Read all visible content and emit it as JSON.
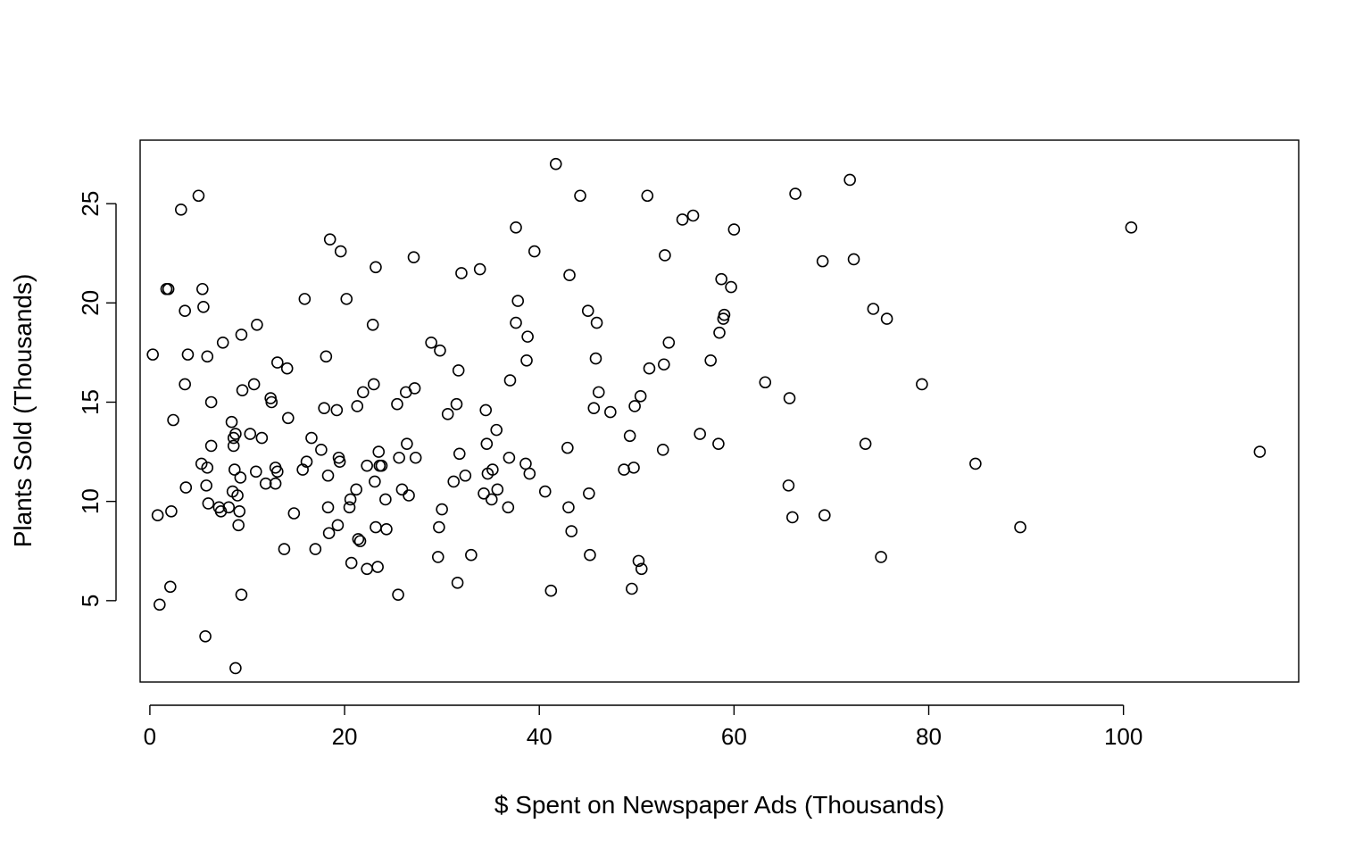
{
  "chart_data": {
    "type": "scatter",
    "title": "",
    "xlabel": "$ Spent on Newspaper Ads (Thousands)",
    "ylabel": "Plants Sold (Thousands)",
    "xlim": [
      -1,
      118
    ],
    "ylim": [
      0.9,
      28.2
    ],
    "xticks": [
      0,
      20,
      40,
      60,
      80,
      100
    ],
    "yticks": [
      5,
      10,
      15,
      20,
      25
    ],
    "grid": false,
    "legend": "none",
    "marker": "open-circle",
    "color": "#000000",
    "series": [
      {
        "points": [
          [
            0.3,
            17.4
          ],
          [
            0.8,
            9.3
          ],
          [
            1.0,
            4.8
          ],
          [
            1.7,
            20.7
          ],
          [
            1.9,
            20.7
          ],
          [
            2.1,
            5.7
          ],
          [
            2.2,
            9.5
          ],
          [
            2.4,
            14.1
          ],
          [
            3.2,
            24.7
          ],
          [
            3.6,
            19.6
          ],
          [
            3.6,
            15.9
          ],
          [
            3.7,
            10.7
          ],
          [
            3.9,
            17.4
          ],
          [
            5.0,
            25.4
          ],
          [
            5.3,
            11.9
          ],
          [
            5.4,
            20.7
          ],
          [
            5.5,
            19.8
          ],
          [
            5.7,
            3.2
          ],
          [
            5.8,
            10.8
          ],
          [
            5.9,
            11.7
          ],
          [
            5.9,
            17.3
          ],
          [
            6.0,
            9.9
          ],
          [
            6.3,
            15.0
          ],
          [
            6.3,
            12.8
          ],
          [
            7.1,
            9.7
          ],
          [
            7.3,
            9.5
          ],
          [
            7.5,
            18.0
          ],
          [
            8.1,
            9.7
          ],
          [
            8.4,
            14.0
          ],
          [
            8.5,
            10.5
          ],
          [
            8.6,
            12.8
          ],
          [
            8.6,
            13.2
          ],
          [
            8.7,
            11.6
          ],
          [
            8.8,
            13.4
          ],
          [
            8.8,
            1.6
          ],
          [
            9.0,
            10.3
          ],
          [
            9.1,
            8.8
          ],
          [
            9.2,
            9.5
          ],
          [
            9.3,
            11.2
          ],
          [
            9.4,
            18.4
          ],
          [
            9.4,
            5.3
          ],
          [
            9.5,
            15.6
          ],
          [
            10.3,
            13.4
          ],
          [
            10.7,
            15.9
          ],
          [
            10.9,
            11.5
          ],
          [
            11.0,
            18.9
          ],
          [
            11.5,
            13.2
          ],
          [
            11.9,
            10.9
          ],
          [
            12.4,
            15.2
          ],
          [
            12.5,
            15.0
          ],
          [
            12.9,
            11.7
          ],
          [
            12.9,
            10.9
          ],
          [
            13.1,
            11.5
          ],
          [
            13.1,
            17.0
          ],
          [
            13.8,
            7.6
          ],
          [
            14.1,
            16.7
          ],
          [
            14.2,
            14.2
          ],
          [
            14.8,
            9.4
          ],
          [
            15.7,
            11.6
          ],
          [
            15.9,
            20.2
          ],
          [
            16.1,
            12.0
          ],
          [
            16.6,
            13.2
          ],
          [
            17.0,
            7.6
          ],
          [
            17.6,
            12.6
          ],
          [
            17.9,
            14.7
          ],
          [
            18.1,
            17.3
          ],
          [
            18.3,
            11.3
          ],
          [
            18.3,
            9.7
          ],
          [
            18.4,
            8.4
          ],
          [
            18.5,
            23.2
          ],
          [
            19.2,
            14.6
          ],
          [
            19.3,
            8.8
          ],
          [
            19.4,
            12.2
          ],
          [
            19.5,
            12.0
          ],
          [
            19.6,
            22.6
          ],
          [
            20.2,
            20.2
          ],
          [
            20.5,
            9.7
          ],
          [
            20.6,
            10.1
          ],
          [
            20.7,
            6.9
          ],
          [
            21.2,
            10.6
          ],
          [
            21.3,
            14.8
          ],
          [
            21.4,
            8.1
          ],
          [
            21.6,
            8.0
          ],
          [
            21.9,
            15.5
          ],
          [
            22.3,
            11.8
          ],
          [
            22.3,
            6.6
          ],
          [
            22.9,
            18.9
          ],
          [
            23.0,
            15.9
          ],
          [
            23.1,
            11.0
          ],
          [
            23.2,
            21.8
          ],
          [
            23.2,
            8.7
          ],
          [
            23.4,
            6.7
          ],
          [
            23.5,
            12.5
          ],
          [
            23.6,
            11.8
          ],
          [
            23.8,
            11.8
          ],
          [
            24.2,
            10.1
          ],
          [
            24.3,
            8.6
          ],
          [
            25.4,
            14.9
          ],
          [
            25.5,
            5.3
          ],
          [
            25.6,
            12.2
          ],
          [
            25.9,
            10.6
          ],
          [
            26.3,
            15.5
          ],
          [
            26.4,
            12.9
          ],
          [
            26.6,
            10.3
          ],
          [
            27.1,
            22.3
          ],
          [
            27.2,
            15.7
          ],
          [
            27.3,
            12.2
          ],
          [
            28.9,
            18.0
          ],
          [
            29.6,
            7.2
          ],
          [
            29.7,
            8.7
          ],
          [
            29.8,
            17.6
          ],
          [
            30.0,
            9.6
          ],
          [
            30.6,
            14.4
          ],
          [
            31.2,
            11.0
          ],
          [
            31.5,
            14.9
          ],
          [
            31.6,
            5.9
          ],
          [
            31.7,
            16.6
          ],
          [
            31.8,
            12.4
          ],
          [
            32.0,
            21.5
          ],
          [
            32.4,
            11.3
          ],
          [
            33.0,
            7.3
          ],
          [
            33.9,
            21.7
          ],
          [
            34.3,
            10.4
          ],
          [
            34.5,
            14.6
          ],
          [
            34.6,
            12.9
          ],
          [
            34.7,
            11.4
          ],
          [
            35.1,
            10.1
          ],
          [
            35.2,
            11.6
          ],
          [
            35.6,
            13.6
          ],
          [
            35.7,
            10.6
          ],
          [
            36.8,
            9.7
          ],
          [
            36.9,
            12.2
          ],
          [
            37.0,
            16.1
          ],
          [
            37.6,
            23.8
          ],
          [
            37.6,
            19.0
          ],
          [
            37.8,
            20.1
          ],
          [
            38.6,
            11.9
          ],
          [
            38.7,
            17.1
          ],
          [
            38.8,
            18.3
          ],
          [
            39.0,
            11.4
          ],
          [
            39.5,
            22.6
          ],
          [
            40.6,
            10.5
          ],
          [
            41.2,
            5.5
          ],
          [
            41.7,
            27.0
          ],
          [
            42.9,
            12.7
          ],
          [
            43.0,
            9.7
          ],
          [
            43.1,
            21.4
          ],
          [
            43.3,
            8.5
          ],
          [
            44.2,
            25.4
          ],
          [
            45.0,
            19.6
          ],
          [
            45.1,
            10.4
          ],
          [
            45.2,
            7.3
          ],
          [
            45.6,
            14.7
          ],
          [
            45.8,
            17.2
          ],
          [
            45.9,
            19.0
          ],
          [
            46.1,
            15.5
          ],
          [
            47.3,
            14.5
          ],
          [
            48.7,
            11.6
          ],
          [
            49.3,
            13.3
          ],
          [
            49.5,
            5.6
          ],
          [
            49.7,
            11.7
          ],
          [
            49.8,
            14.8
          ],
          [
            50.2,
            7.0
          ],
          [
            50.4,
            15.3
          ],
          [
            50.5,
            6.6
          ],
          [
            51.1,
            25.4
          ],
          [
            51.3,
            16.7
          ],
          [
            52.7,
            12.6
          ],
          [
            52.8,
            16.9
          ],
          [
            52.9,
            22.4
          ],
          [
            53.3,
            18.0
          ],
          [
            54.7,
            24.2
          ],
          [
            55.8,
            24.4
          ],
          [
            56.5,
            13.4
          ],
          [
            57.6,
            17.1
          ],
          [
            58.4,
            12.9
          ],
          [
            58.5,
            18.5
          ],
          [
            58.7,
            21.2
          ],
          [
            58.9,
            19.2
          ],
          [
            59.0,
            19.4
          ],
          [
            59.7,
            20.8
          ],
          [
            60.0,
            23.7
          ],
          [
            63.2,
            16.0
          ],
          [
            65.6,
            10.8
          ],
          [
            65.7,
            15.2
          ],
          [
            66.0,
            9.2
          ],
          [
            66.3,
            25.5
          ],
          [
            69.1,
            22.1
          ],
          [
            69.3,
            9.3
          ],
          [
            71.9,
            26.2
          ],
          [
            72.3,
            22.2
          ],
          [
            73.5,
            12.9
          ],
          [
            74.3,
            19.7
          ],
          [
            75.1,
            7.2
          ],
          [
            75.7,
            19.2
          ],
          [
            79.3,
            15.9
          ],
          [
            84.8,
            11.9
          ],
          [
            89.4,
            8.7
          ],
          [
            100.8,
            23.8
          ],
          [
            114.0,
            12.5
          ]
        ]
      }
    ]
  }
}
